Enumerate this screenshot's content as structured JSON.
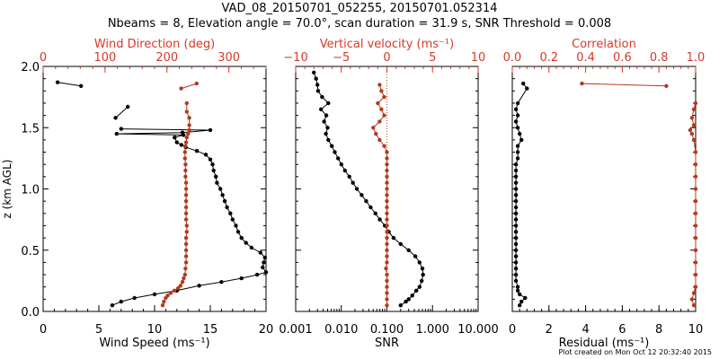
{
  "title_line1": "VAD_08_20150701_052255, 20150701.052314",
  "title_line2": "Nbeams = 8, Elevation angle = 70.0°, scan duration = 31.9 s, SNR Threshold = 0.008",
  "footer": "Plot created on Mon Oct 12 20:32:40 2015",
  "colors": {
    "black": "#000000",
    "red": "#b33a1e",
    "red_axis": "#d53a2a"
  },
  "chart_data": [
    {
      "type": "line",
      "panel": "wind",
      "ylabel": "z (km AGL)",
      "ylim": [
        0,
        2.0
      ],
      "y_ticks": [
        "0.0",
        "0.5",
        "1.0",
        "1.5",
        "2.0"
      ],
      "x_bottom": {
        "label": "Wind Speed (ms⁻¹)",
        "range": [
          0,
          20
        ],
        "ticks": [
          "0",
          "5",
          "10",
          "15",
          "20"
        ]
      },
      "x_top": {
        "label": "Wind Direction (deg)",
        "range": [
          0,
          360
        ],
        "ticks": [
          "0",
          "100",
          "200",
          "300"
        ]
      },
      "series": [
        {
          "axis": "bottom",
          "color": "black",
          "points": [
            [
              6.2,
              0.05
            ],
            [
              7.0,
              0.08
            ],
            [
              8.2,
              0.11
            ],
            [
              10.0,
              0.14
            ],
            [
              12.0,
              0.17
            ],
            [
              14.0,
              0.21
            ],
            [
              16.0,
              0.24
            ],
            [
              17.8,
              0.27
            ],
            [
              19.2,
              0.3
            ],
            [
              20.0,
              0.32
            ],
            [
              19.7,
              0.36
            ],
            [
              19.8,
              0.4
            ],
            [
              19.9,
              0.44
            ],
            [
              19.5,
              0.48
            ],
            [
              18.7,
              0.52
            ],
            [
              18.2,
              0.56
            ],
            [
              17.8,
              0.6
            ],
            [
              17.5,
              0.65
            ],
            [
              17.3,
              0.7
            ],
            [
              17.0,
              0.75
            ],
            [
              16.8,
              0.8
            ],
            [
              16.5,
              0.85
            ],
            [
              16.3,
              0.9
            ],
            [
              16.1,
              0.95
            ],
            [
              15.9,
              1.0
            ],
            [
              15.6,
              1.05
            ],
            [
              15.5,
              1.1
            ],
            [
              15.3,
              1.15
            ],
            [
              15.2,
              1.2
            ],
            [
              15.0,
              1.24
            ],
            [
              14.6,
              1.28
            ],
            [
              13.8,
              1.31
            ],
            [
              12.8,
              1.34
            ],
            [
              12.4,
              1.36
            ],
            [
              12.0,
              1.38
            ],
            [
              11.8,
              1.42
            ],
            [
              12.6,
              1.44
            ],
            [
              6.6,
              1.45
            ],
            [
              12.5,
              1.46
            ],
            [
              15.0,
              1.48
            ],
            [
              7.0,
              1.49
            ]
          ]
        },
        {
          "axis": "bottom",
          "color": "black",
          "points": [
            [
              1.3,
              1.87
            ],
            [
              3.4,
              1.84
            ]
          ]
        },
        {
          "axis": "bottom",
          "color": "black",
          "points": [
            [
              7.6,
              1.67
            ],
            [
              6.5,
              1.58
            ]
          ]
        },
        {
          "axis": "top",
          "color": "red",
          "points": [
            [
              193,
              0.05
            ],
            [
              195,
              0.08
            ],
            [
              198,
              0.11
            ],
            [
              201,
              0.13
            ],
            [
              206,
              0.15
            ],
            [
              212,
              0.17
            ],
            [
              218,
              0.19
            ],
            [
              222,
              0.21
            ],
            [
              225,
              0.24
            ],
            [
              227,
              0.27
            ],
            [
              229,
              0.3
            ],
            [
              230,
              0.35
            ],
            [
              231,
              0.4
            ],
            [
              231,
              0.45
            ],
            [
              231,
              0.5
            ],
            [
              231,
              0.55
            ],
            [
              231,
              0.6
            ],
            [
              232,
              0.65
            ],
            [
              232,
              0.7
            ],
            [
              231,
              0.75
            ],
            [
              231,
              0.8
            ],
            [
              231,
              0.85
            ],
            [
              231,
              0.9
            ],
            [
              231,
              0.95
            ],
            [
              231,
              1.0
            ],
            [
              231,
              1.05
            ],
            [
              230,
              1.1
            ],
            [
              230,
              1.15
            ],
            [
              230,
              1.2
            ],
            [
              229,
              1.25
            ],
            [
              229,
              1.3
            ],
            [
              230,
              1.35
            ],
            [
              231,
              1.38
            ],
            [
              232,
              1.42
            ],
            [
              234,
              1.45
            ],
            [
              236,
              1.48
            ],
            [
              236,
              1.52
            ],
            [
              236,
              1.58
            ],
            [
              232,
              1.63
            ],
            [
              232,
              1.7
            ]
          ]
        },
        {
          "axis": "top",
          "color": "red",
          "points": [
            [
              223,
              1.82
            ],
            [
              248,
              1.86
            ]
          ]
        }
      ]
    },
    {
      "type": "line",
      "panel": "snr",
      "ylim": [
        0,
        2.0
      ],
      "x_bottom": {
        "label": "SNR",
        "range": [
          0.001,
          10.0
        ],
        "scale": "log",
        "ticks": [
          "0.001",
          "0.010",
          "0.100",
          "1.000",
          "10.000"
        ]
      },
      "x_top": {
        "label": "Vertical velocity (ms⁻¹)",
        "range": [
          -10,
          10
        ],
        "ticks": [
          "−10",
          "−5",
          "0",
          "5",
          "10"
        ]
      },
      "reference_line": {
        "axis": "top",
        "value": 0,
        "style": "dotted",
        "color": "red"
      },
      "series": [
        {
          "axis": "bottom",
          "color": "black",
          "points": [
            [
              0.2,
              0.05
            ],
            [
              0.26,
              0.08
            ],
            [
              0.3,
              0.1
            ],
            [
              0.36,
              0.13
            ],
            [
              0.44,
              0.17
            ],
            [
              0.52,
              0.2
            ],
            [
              0.58,
              0.25
            ],
            [
              0.62,
              0.3
            ],
            [
              0.6,
              0.35
            ],
            [
              0.52,
              0.4
            ],
            [
              0.42,
              0.45
            ],
            [
              0.3,
              0.5
            ],
            [
              0.2,
              0.55
            ],
            [
              0.14,
              0.6
            ],
            [
              0.11,
              0.65
            ],
            [
              0.09,
              0.7
            ],
            [
              0.07,
              0.75
            ],
            [
              0.056,
              0.8
            ],
            [
              0.044,
              0.85
            ],
            [
              0.035,
              0.9
            ],
            [
              0.028,
              0.95
            ],
            [
              0.022,
              1.0
            ],
            [
              0.018,
              1.05
            ],
            [
              0.015,
              1.1
            ],
            [
              0.012,
              1.15
            ],
            [
              0.01,
              1.2
            ],
            [
              0.0085,
              1.25
            ],
            [
              0.0072,
              1.3
            ],
            [
              0.0062,
              1.35
            ],
            [
              0.0052,
              1.4
            ],
            [
              0.0046,
              1.45
            ],
            [
              0.005,
              1.5
            ],
            [
              0.0042,
              1.55
            ],
            [
              0.0047,
              1.6
            ],
            [
              0.0036,
              1.65
            ],
            [
              0.0052,
              1.7
            ],
            [
              0.0038,
              1.75
            ],
            [
              0.0031,
              1.8
            ],
            [
              0.003,
              1.85
            ],
            [
              0.0028,
              1.9
            ],
            [
              0.0025,
              1.95
            ]
          ]
        },
        {
          "axis": "top",
          "color": "red",
          "points": [
            [
              0.0,
              0.05
            ],
            [
              0.0,
              0.1
            ],
            [
              0.0,
              0.15
            ],
            [
              0.0,
              0.2
            ],
            [
              0.0,
              0.25
            ],
            [
              0.0,
              0.3
            ],
            [
              -0.1,
              0.35
            ],
            [
              0.0,
              0.4
            ],
            [
              0.0,
              0.45
            ],
            [
              0.0,
              0.5
            ],
            [
              0.0,
              0.55
            ],
            [
              0.0,
              0.6
            ],
            [
              0.0,
              0.65
            ],
            [
              0.0,
              0.7
            ],
            [
              0.0,
              0.75
            ],
            [
              0.0,
              0.8
            ],
            [
              0.0,
              0.85
            ],
            [
              0.0,
              0.9
            ],
            [
              0.0,
              0.95
            ],
            [
              0.0,
              1.0
            ],
            [
              0.0,
              1.05
            ],
            [
              0.0,
              1.1
            ],
            [
              0.0,
              1.15
            ],
            [
              0.0,
              1.2
            ],
            [
              0.0,
              1.25
            ],
            [
              0.0,
              1.3
            ],
            [
              -0.3,
              1.35
            ],
            [
              -0.8,
              1.4
            ],
            [
              -1.2,
              1.45
            ],
            [
              -1.5,
              1.5
            ],
            [
              -0.8,
              1.55
            ],
            [
              -0.3,
              1.6
            ],
            [
              -0.6,
              1.65
            ],
            [
              -1.0,
              1.7
            ],
            [
              -0.3,
              1.75
            ],
            [
              -0.6,
              1.8
            ],
            [
              -0.8,
              1.85
            ]
          ]
        }
      ]
    },
    {
      "type": "line",
      "panel": "residual",
      "ylim": [
        0,
        2.0
      ],
      "x_bottom": {
        "label": "Residual (ms⁻¹)",
        "range": [
          0,
          10
        ],
        "ticks": [
          "0",
          "2",
          "4",
          "6",
          "8",
          "10"
        ]
      },
      "x_top": {
        "label": "Correlation",
        "range": [
          0.0,
          1.0
        ],
        "ticks": [
          "0.0",
          "0.2",
          "0.4",
          "0.6",
          "0.8",
          "1.0"
        ]
      },
      "series": [
        {
          "axis": "bottom",
          "color": "black",
          "points": [
            [
              0.4,
              0.05
            ],
            [
              0.5,
              0.08
            ],
            [
              0.7,
              0.11
            ],
            [
              0.4,
              0.14
            ],
            [
              0.3,
              0.17
            ],
            [
              0.3,
              0.2
            ],
            [
              0.2,
              0.25
            ],
            [
              0.2,
              0.3
            ],
            [
              0.2,
              0.35
            ],
            [
              0.2,
              0.4
            ],
            [
              0.2,
              0.45
            ],
            [
              0.2,
              0.5
            ],
            [
              0.2,
              0.55
            ],
            [
              0.2,
              0.6
            ],
            [
              0.2,
              0.65
            ],
            [
              0.2,
              0.7
            ],
            [
              0.2,
              0.75
            ],
            [
              0.2,
              0.8
            ],
            [
              0.2,
              0.85
            ],
            [
              0.2,
              0.9
            ],
            [
              0.2,
              0.95
            ],
            [
              0.2,
              1.0
            ],
            [
              0.2,
              1.05
            ],
            [
              0.2,
              1.1
            ],
            [
              0.2,
              1.15
            ],
            [
              0.2,
              1.2
            ],
            [
              0.3,
              1.25
            ],
            [
              0.3,
              1.3
            ],
            [
              0.3,
              1.35
            ],
            [
              0.5,
              1.4
            ],
            [
              0.4,
              1.45
            ],
            [
              0.3,
              1.5
            ],
            [
              0.2,
              1.55
            ],
            [
              0.3,
              1.6
            ],
            [
              0.2,
              1.65
            ],
            [
              0.3,
              1.7
            ],
            [
              0.8,
              1.82
            ],
            [
              0.6,
              1.86
            ]
          ]
        },
        {
          "axis": "top",
          "color": "red",
          "points": [
            [
              0.99,
              0.05
            ],
            [
              0.98,
              0.1
            ],
            [
              0.99,
              0.15
            ],
            [
              1.0,
              0.2
            ],
            [
              1.0,
              0.3
            ],
            [
              1.0,
              0.4
            ],
            [
              1.0,
              0.5
            ],
            [
              1.0,
              0.6
            ],
            [
              1.0,
              0.7
            ],
            [
              1.0,
              0.8
            ],
            [
              1.0,
              0.9
            ],
            [
              1.0,
              1.0
            ],
            [
              1.0,
              1.1
            ],
            [
              1.0,
              1.2
            ],
            [
              1.0,
              1.3
            ],
            [
              0.99,
              1.4
            ],
            [
              0.98,
              1.45
            ],
            [
              0.97,
              1.48
            ],
            [
              0.99,
              1.52
            ],
            [
              0.98,
              1.58
            ],
            [
              0.99,
              1.65
            ],
            [
              1.0,
              1.7
            ]
          ]
        },
        {
          "axis": "top",
          "color": "red",
          "points": [
            [
              0.38,
              1.86
            ],
            [
              0.84,
              1.84
            ]
          ]
        }
      ]
    }
  ]
}
